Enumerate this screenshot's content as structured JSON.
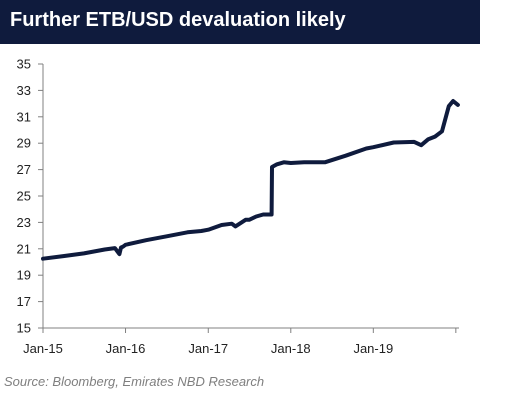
{
  "title": "Further ETB/USD devaluation likely",
  "source": "Source: Bloomberg, Emirates NBD Research",
  "chart_data": {
    "type": "line",
    "title": "Further ETB/USD devaluation likely",
    "xlabel": "",
    "ylabel": "",
    "ylim": [
      15,
      35
    ],
    "y_ticks": [
      15,
      17,
      19,
      21,
      23,
      25,
      27,
      29,
      31,
      33,
      35
    ],
    "x_ticks": [
      "Jan-15",
      "Jan-16",
      "Jan-17",
      "Jan-18",
      "Jan-19"
    ],
    "x_range": [
      "2015-01-01",
      "2020-01-15"
    ],
    "grid": false,
    "legend": "none",
    "color": "#0f1b3d",
    "series": [
      {
        "x": [
          "2015-01-01",
          "2015-04-01",
          "2015-07-01",
          "2015-10-01",
          "2015-11-15",
          "2015-12-05",
          "2015-12-12",
          "2015-12-20",
          "2016-01-01",
          "2016-04-01",
          "2016-07-01",
          "2016-10-01",
          "2016-12-01",
          "2017-01-01",
          "2017-03-01",
          "2017-04-15",
          "2017-05-01",
          "2017-06-15",
          "2017-07-01",
          "2017-08-01",
          "2017-09-01",
          "2017-10-08",
          "2017-10-10",
          "2017-11-01",
          "2017-12-01",
          "2018-01-01",
          "2018-03-01",
          "2018-06-01",
          "2018-09-01",
          "2018-12-01",
          "2019-01-01",
          "2019-04-01",
          "2019-07-01",
          "2019-08-01",
          "2019-09-01",
          "2019-10-01",
          "2019-11-01",
          "2019-12-01",
          "2019-12-20",
          "2020-01-10"
        ],
        "values": [
          20.25,
          20.45,
          20.65,
          20.95,
          21.05,
          20.6,
          21.1,
          21.15,
          21.3,
          21.65,
          21.95,
          22.25,
          22.35,
          22.45,
          22.8,
          22.9,
          22.7,
          23.2,
          23.2,
          23.45,
          23.6,
          23.6,
          27.2,
          27.4,
          27.55,
          27.5,
          27.55,
          27.55,
          28.05,
          28.6,
          28.7,
          29.05,
          29.1,
          28.85,
          29.3,
          29.5,
          29.9,
          31.8,
          32.2,
          31.9
        ]
      }
    ]
  }
}
